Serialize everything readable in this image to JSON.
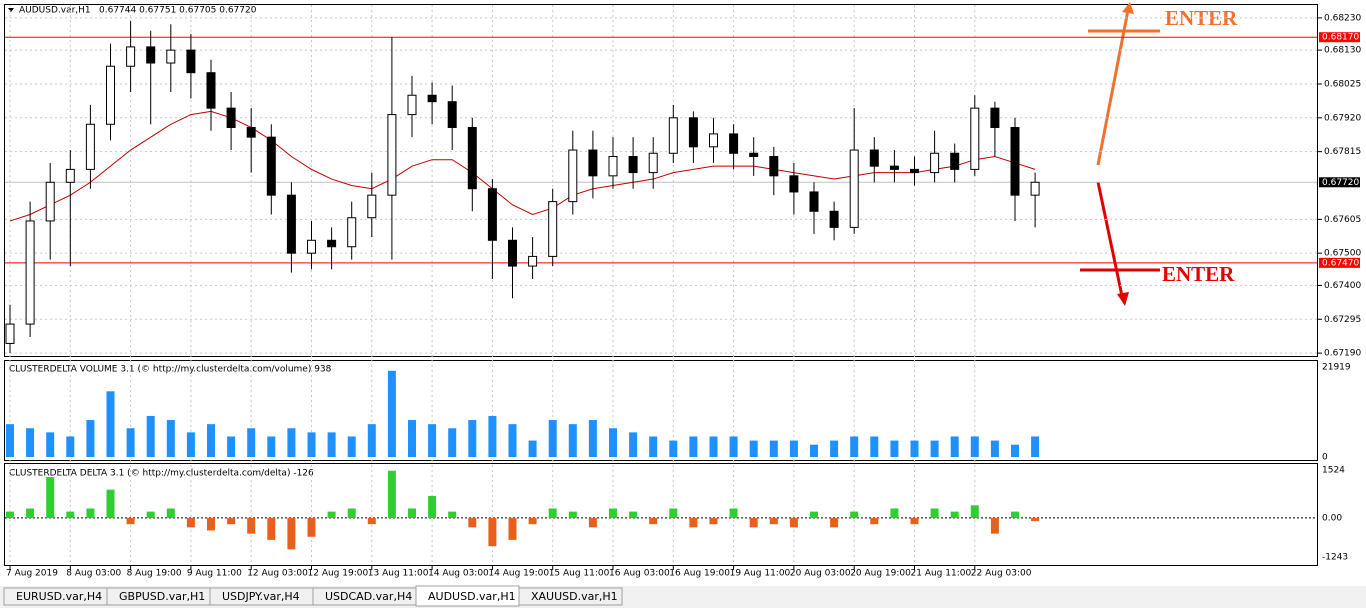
{
  "chart_data": [
    {
      "type": "candlestick",
      "title": "AUDUSD.var,H1",
      "subtitle": "0.67744 0.67751 0.67705 0.67720",
      "categories": [
        "7 Aug 2019",
        null,
        null,
        "8 Aug 03:00",
        null,
        null,
        "8 Aug 19:00",
        null,
        null,
        "9 Aug 11:00",
        null,
        null,
        "12 Aug 03:00",
        null,
        null,
        "12 Aug 19:00",
        null,
        null,
        "13 Aug 11:00",
        null,
        null,
        "14 Aug 03:00",
        null,
        null,
        "14 Aug 19:00",
        null,
        null,
        "15 Aug 11:00",
        null,
        null,
        "16 Aug 03:00",
        null,
        null,
        "16 Aug 19:00",
        null,
        null,
        "19 Aug 11:00",
        null,
        null,
        "20 Aug 03:00",
        null,
        null,
        "20 Aug 19:00",
        null,
        null,
        "21 Aug 11:00",
        null,
        null,
        "22 Aug 03:00",
        null,
        null,
        null
      ],
      "open": [
        0.6722,
        0.6728,
        0.676,
        0.6772,
        0.6776,
        0.679,
        0.6808,
        0.6814,
        0.6809,
        0.6813,
        0.6806,
        0.6795,
        0.6789,
        0.6786,
        0.6768,
        0.675,
        0.6754,
        0.6752,
        0.6761,
        0.6768,
        0.6793,
        0.6799,
        0.6797,
        0.6789,
        0.677,
        0.6754,
        0.6746,
        0.6749,
        0.6766,
        0.6782,
        0.6774,
        0.678,
        0.6775,
        0.6781,
        0.6792,
        0.6783,
        0.6787,
        0.6781,
        0.678,
        0.6774,
        0.6769,
        0.6763,
        0.6758,
        0.6782,
        0.6777,
        0.6776,
        0.6775,
        0.6781,
        0.6776,
        0.6795,
        0.6789,
        0.6768
      ],
      "high": [
        0.6734,
        0.6766,
        0.6778,
        0.6782,
        0.6796,
        0.6815,
        0.6822,
        0.6819,
        0.6821,
        0.6818,
        0.681,
        0.68,
        0.6795,
        0.679,
        0.6772,
        0.676,
        0.6758,
        0.6766,
        0.6775,
        0.6817,
        0.6805,
        0.6803,
        0.6802,
        0.6792,
        0.6773,
        0.6758,
        0.6755,
        0.677,
        0.6788,
        0.6788,
        0.6786,
        0.6786,
        0.6786,
        0.6796,
        0.6794,
        0.6792,
        0.679,
        0.6786,
        0.6783,
        0.6778,
        0.6772,
        0.6766,
        0.6795,
        0.6786,
        0.6782,
        0.678,
        0.6788,
        0.6784,
        0.6799,
        0.6797,
        0.6792,
        0.6775
      ],
      "low": [
        0.6719,
        0.6724,
        0.6748,
        0.6746,
        0.677,
        0.6785,
        0.68,
        0.679,
        0.68,
        0.6798,
        0.6788,
        0.6782,
        0.6775,
        0.6762,
        0.6744,
        0.6745,
        0.6745,
        0.6748,
        0.6755,
        0.6748,
        0.6786,
        0.679,
        0.6782,
        0.6763,
        0.6742,
        0.6736,
        0.6742,
        0.6746,
        0.6762,
        0.6767,
        0.677,
        0.677,
        0.677,
        0.6778,
        0.6778,
        0.6778,
        0.6776,
        0.6774,
        0.6768,
        0.6762,
        0.6756,
        0.6754,
        0.6756,
        0.6772,
        0.6772,
        0.6771,
        0.6772,
        0.6772,
        0.6774,
        0.678,
        0.676,
        0.6758
      ],
      "close": [
        0.6728,
        0.676,
        0.6772,
        0.6776,
        0.679,
        0.6808,
        0.6814,
        0.6809,
        0.6813,
        0.6806,
        0.6795,
        0.6789,
        0.6786,
        0.6768,
        0.675,
        0.6754,
        0.6752,
        0.6761,
        0.6768,
        0.6793,
        0.6799,
        0.6797,
        0.6789,
        0.677,
        0.6754,
        0.6746,
        0.6749,
        0.6766,
        0.6782,
        0.6774,
        0.678,
        0.6775,
        0.6781,
        0.6792,
        0.6783,
        0.6787,
        0.6781,
        0.678,
        0.6774,
        0.6769,
        0.6763,
        0.6758,
        0.6782,
        0.6777,
        0.6776,
        0.6775,
        0.6781,
        0.6776,
        0.6795,
        0.6789,
        0.6768,
        0.6772
      ],
      "moving_average": {
        "color": "#c00000",
        "values": [
          0.676,
          0.6762,
          0.6765,
          0.6768,
          0.6772,
          0.6777,
          0.6782,
          0.6786,
          0.679,
          0.6793,
          0.6794,
          0.6792,
          0.6789,
          0.6785,
          0.678,
          0.6776,
          0.6773,
          0.6771,
          0.677,
          0.6773,
          0.6777,
          0.6779,
          0.6779,
          0.6775,
          0.677,
          0.6765,
          0.6762,
          0.6764,
          0.6768,
          0.677,
          0.6771,
          0.6772,
          0.6773,
          0.6775,
          0.6776,
          0.6777,
          0.6777,
          0.6777,
          0.6776,
          0.6775,
          0.6774,
          0.6773,
          0.6774,
          0.6775,
          0.6775,
          0.6775,
          0.6776,
          0.6777,
          0.6779,
          0.678,
          0.6778,
          0.6776
        ]
      },
      "ylim": [
        0.67181,
        0.6827
      ],
      "yticks": [
        {
          "value": 0.6823,
          "label": "0.68230"
        },
        {
          "value": 0.6813,
          "label": "0.68130"
        },
        {
          "value": 0.68025,
          "label": "0.68025"
        },
        {
          "value": 0.6792,
          "label": "0.67920"
        },
        {
          "value": 0.67815,
          "label": "0.67815"
        },
        {
          "value": 0.67605,
          "label": "0.67605"
        },
        {
          "value": 0.675,
          "label": "0.67500"
        },
        {
          "value": 0.674,
          "label": "0.67400"
        },
        {
          "value": 0.67295,
          "label": "0.67295"
        },
        {
          "value": 0.6719,
          "label": "0.67190"
        }
      ],
      "hlines": [
        {
          "value": 0.6817,
          "label": "0.68170",
          "color": "#ff0000"
        },
        {
          "value": 0.6747,
          "label": "0.67470",
          "color": "#ff0000"
        }
      ],
      "last_price": {
        "value": 0.6772,
        "label": "0.67720"
      },
      "grid": true
    },
    {
      "type": "bar",
      "title": "CLUSTERDELTA VOLUME 3.1 (© http://my.clusterdelta.com/volume) 938",
      "color": "#1e90ff",
      "values": [
        8000,
        7000,
        6000,
        5000,
        9000,
        16000,
        7000,
        10000,
        9000,
        6000,
        8000,
        5000,
        7000,
        5000,
        7000,
        6000,
        6000,
        5000,
        8000,
        21000,
        9000,
        8000,
        7000,
        9000,
        10000,
        8000,
        4000,
        9000,
        8000,
        9000,
        7000,
        6000,
        5000,
        4000,
        5000,
        5000,
        5000,
        4000,
        4000,
        4000,
        3000,
        4000,
        5000,
        5000,
        4000,
        4000,
        4000,
        5000,
        5000,
        4000,
        3000,
        5000
      ],
      "ylim": [
        0,
        21919
      ],
      "yticks": [
        21919,
        0
      ]
    },
    {
      "type": "bar",
      "title": "CLUSTERDELTA DELTA 3.1 (© http://my.clusterdelta.com/delta) -126",
      "color": "#32cd32",
      "negative_color": "#e8601c",
      "values": [
        200,
        300,
        1300,
        200,
        300,
        900,
        -200,
        200,
        300,
        -300,
        -400,
        -200,
        -500,
        -700,
        -1000,
        -600,
        200,
        300,
        -200,
        1500,
        300,
        700,
        200,
        -300,
        -900,
        -700,
        -200,
        300,
        200,
        -300,
        300,
        200,
        -200,
        300,
        -300,
        -200,
        300,
        -300,
        -200,
        -300,
        200,
        -300,
        200,
        -200,
        300,
        -200,
        300,
        200,
        400,
        -500,
        200,
        -100
      ],
      "ylim": [
        -1243,
        1524
      ],
      "yticks": [
        1524,
        {
          "value": 0,
          "label": "0.00"
        },
        -1243
      ]
    }
  ],
  "annotations": [
    {
      "text": "ENTER",
      "color": "#f07030"
    },
    {
      "text": "ENTER",
      "color": "#e00000"
    }
  ],
  "tabs": [
    "EURUSD.var,H4",
    "GBPUSD.var,H1",
    "USDJPY.var,H4",
    "USDCAD.var,H4",
    "AUDUSD.var,H1",
    "XAUUSD.var,H1"
  ],
  "active_tab": 4
}
